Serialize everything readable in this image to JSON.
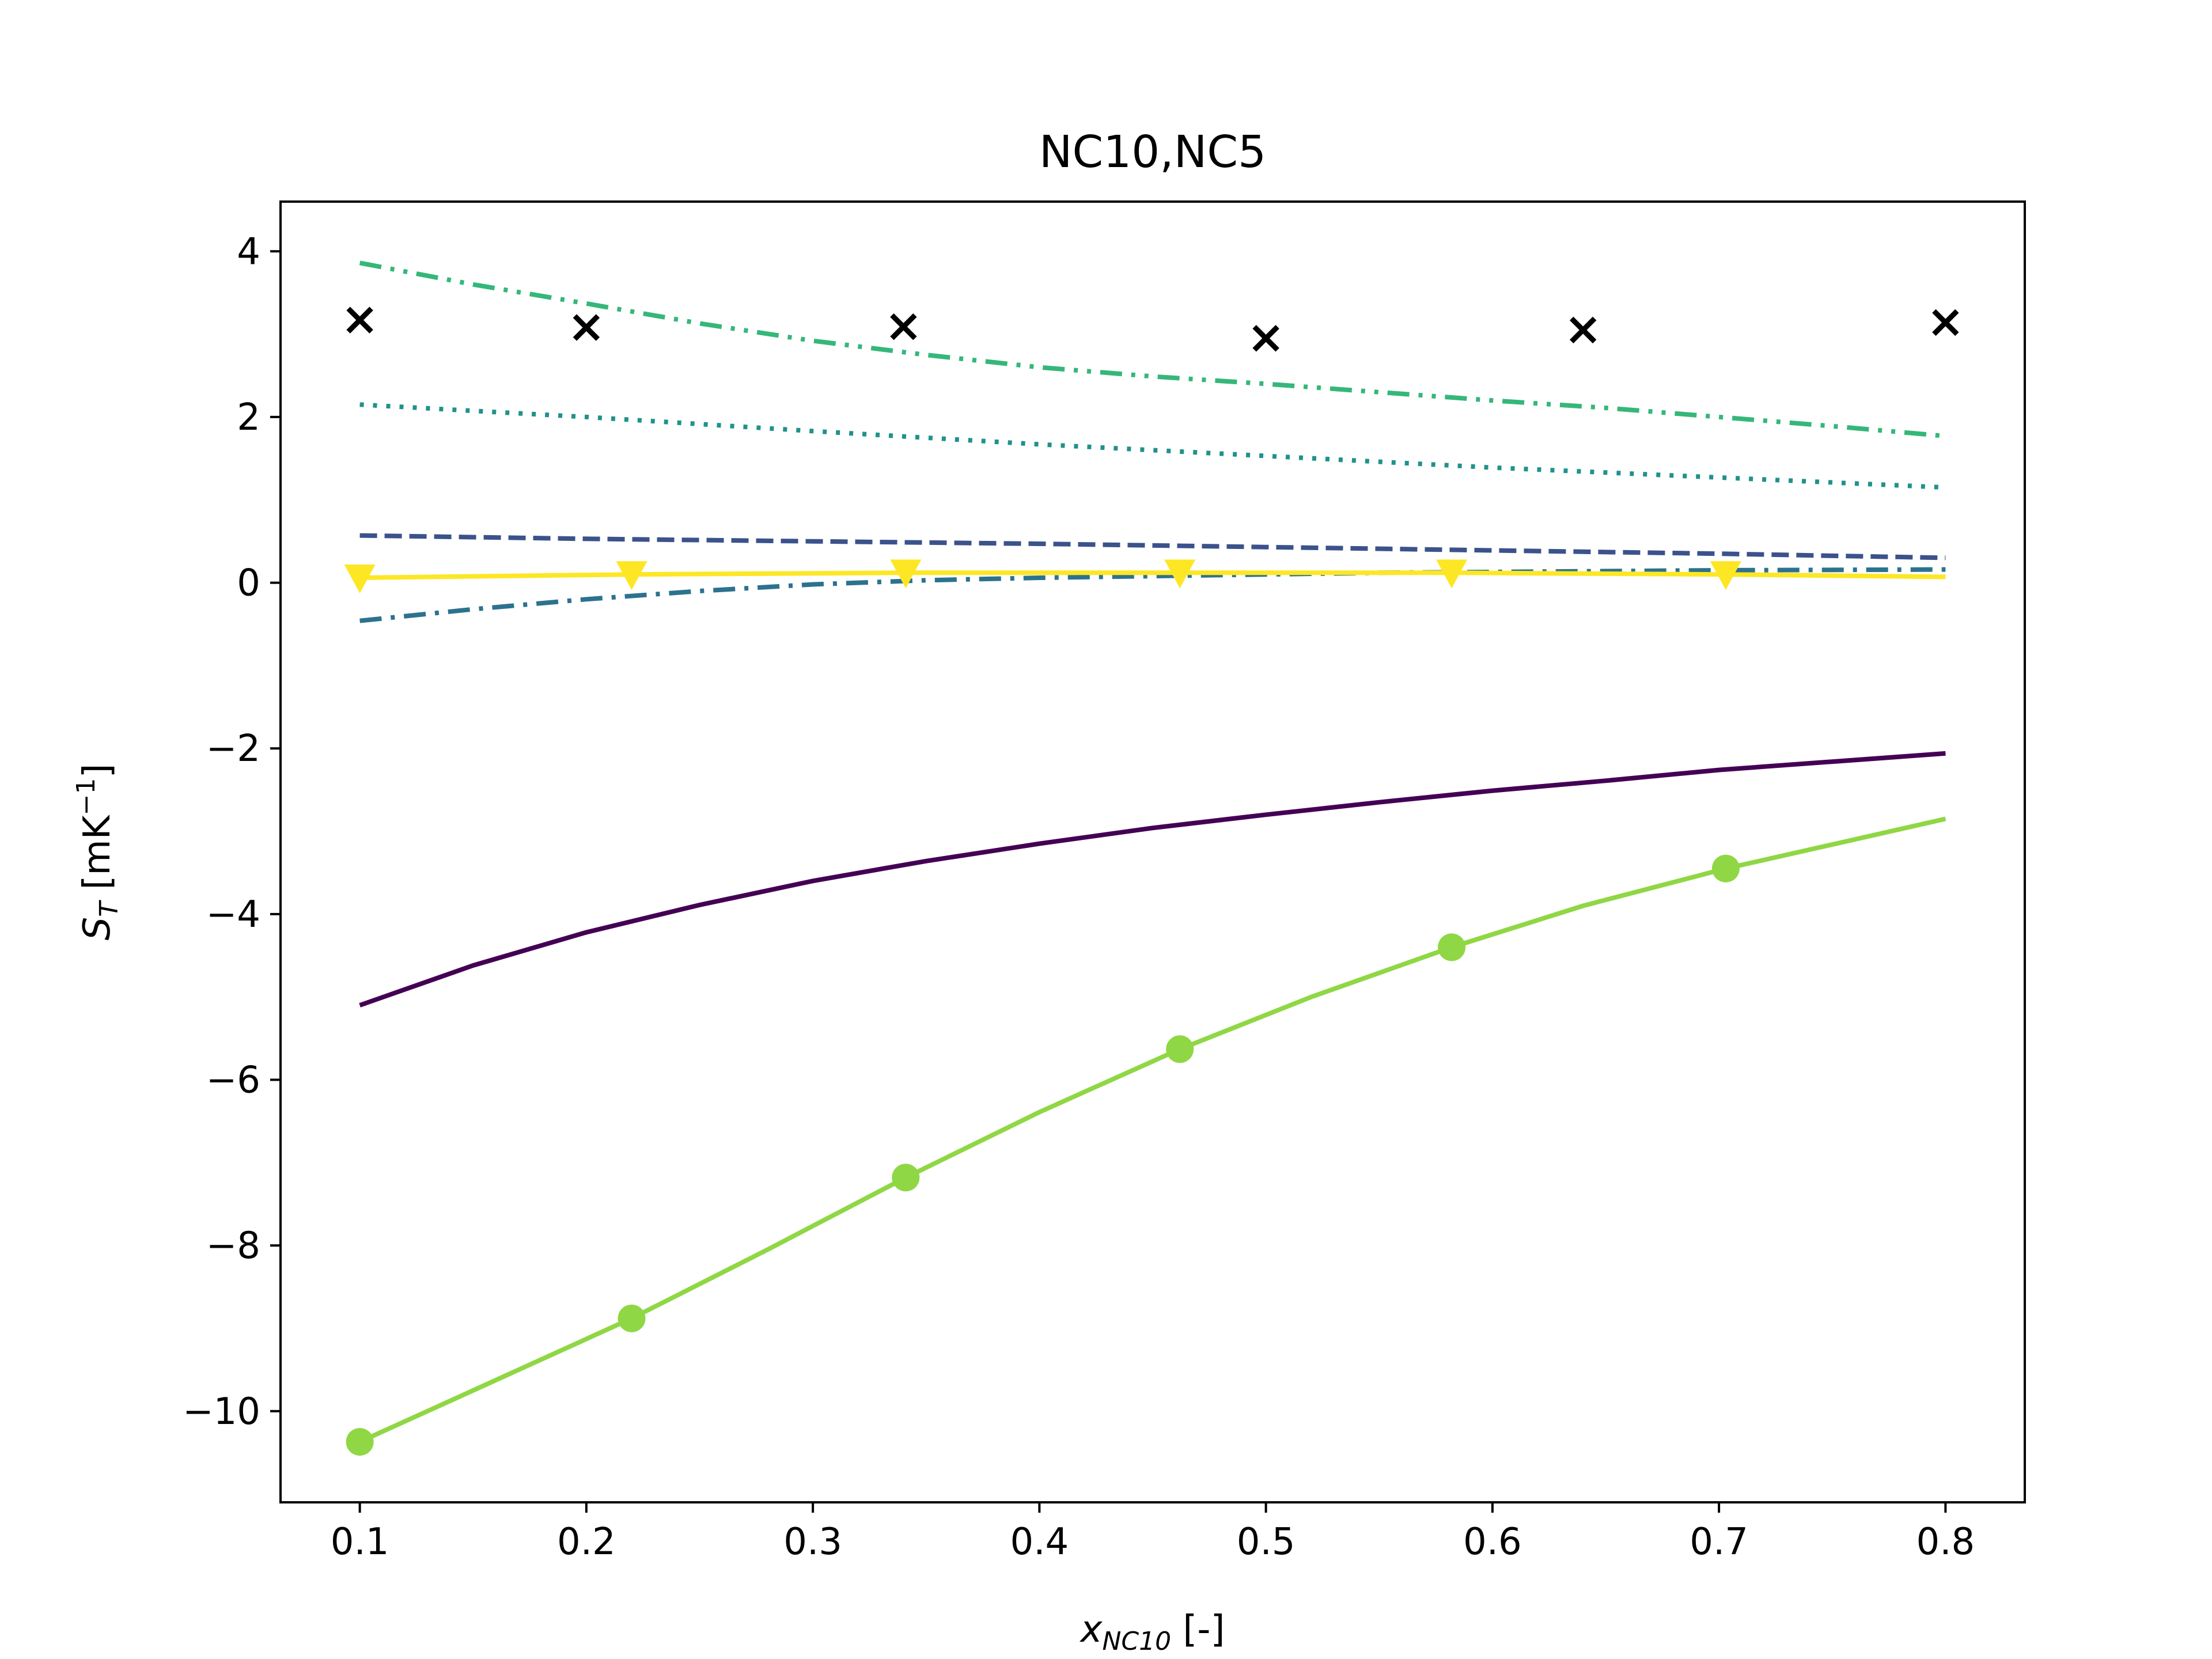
{
  "chart_data": {
    "type": "line",
    "title": "NC10,NC5",
    "xlabel": {
      "main": "x",
      "sub": "NC10",
      "suffix": " [-]"
    },
    "ylabel": {
      "main": "S",
      "sub": "T",
      "unit_prefix": " [mK",
      "unit_sup": "−1",
      "unit_suffix": "]"
    },
    "xlim": [
      0.065,
      0.835
    ],
    "ylim": [
      -11.1,
      4.6
    ],
    "xticks": [
      0.1,
      0.2,
      0.3,
      0.4,
      0.5,
      0.6,
      0.7,
      0.8
    ],
    "xtick_labels": [
      "0.1",
      "0.2",
      "0.3",
      "0.4",
      "0.5",
      "0.6",
      "0.7",
      "0.8"
    ],
    "yticks": [
      4,
      2,
      0,
      -2,
      -4,
      -6,
      -8,
      -10
    ],
    "ytick_labels": [
      "4",
      "2",
      "0",
      "−2",
      "−4",
      "−6",
      "−8",
      "−10"
    ],
    "grid": false,
    "series": [
      {
        "color": "#440154",
        "linestyle": "solid",
        "x": [
          0.1,
          0.15,
          0.2,
          0.25,
          0.3,
          0.35,
          0.4,
          0.45,
          0.5,
          0.55,
          0.6,
          0.65,
          0.7,
          0.75,
          0.8
        ],
        "y": [
          -5.1,
          -4.62,
          -4.22,
          -3.89,
          -3.6,
          -3.36,
          -3.15,
          -2.96,
          -2.8,
          -2.65,
          -2.51,
          -2.39,
          -2.26,
          -2.16,
          -2.06
        ]
      },
      {
        "color": "#3b528b",
        "linestyle": "dashed",
        "x": [
          0.1,
          0.2,
          0.3,
          0.4,
          0.5,
          0.6,
          0.7,
          0.8
        ],
        "y": [
          0.57,
          0.53,
          0.5,
          0.47,
          0.43,
          0.39,
          0.35,
          0.3
        ]
      },
      {
        "color": "#2c728e",
        "linestyle": "dashdot",
        "x": [
          0.1,
          0.15,
          0.2,
          0.25,
          0.3,
          0.35,
          0.4,
          0.45,
          0.5,
          0.55,
          0.6,
          0.7,
          0.8
        ],
        "y": [
          -0.46,
          -0.32,
          -0.2,
          -0.1,
          -0.02,
          0.03,
          0.06,
          0.08,
          0.1,
          0.12,
          0.13,
          0.15,
          0.16
        ]
      },
      {
        "color": "#21918c",
        "linestyle": "dotted",
        "x": [
          0.1,
          0.2,
          0.3,
          0.4,
          0.5,
          0.6,
          0.7,
          0.8
        ],
        "y": [
          2.15,
          2.0,
          1.83,
          1.67,
          1.53,
          1.39,
          1.27,
          1.15
        ]
      },
      {
        "color": "#35b779",
        "linestyle": "dashdotdot",
        "x": [
          0.1,
          0.15,
          0.2,
          0.25,
          0.3,
          0.35,
          0.4,
          0.45,
          0.5,
          0.55,
          0.6,
          0.65,
          0.7,
          0.75,
          0.8
        ],
        "y": [
          3.86,
          3.6,
          3.37,
          3.13,
          2.92,
          2.75,
          2.6,
          2.49,
          2.4,
          2.3,
          2.2,
          2.11,
          2.0,
          1.89,
          1.77
        ]
      },
      {
        "color": "#8fd744",
        "linestyle": "solid",
        "marker": "circle",
        "x": [
          0.1,
          0.15,
          0.22,
          0.28,
          0.341,
          0.4,
          0.462,
          0.52,
          0.582,
          0.64,
          0.703,
          0.75,
          0.8
        ],
        "y": [
          -10.37,
          -9.75,
          -8.88,
          -8.05,
          -7.18,
          -6.39,
          -5.63,
          -5.0,
          -4.4,
          -3.9,
          -3.45,
          -3.16,
          -2.85
        ],
        "markers_x": [
          0.1,
          0.22,
          0.341,
          0.462,
          0.582,
          0.703
        ],
        "markers_y": [
          -10.37,
          -8.88,
          -7.18,
          -5.63,
          -4.4,
          -3.45
        ]
      },
      {
        "color": "#fde725",
        "linestyle": "solid",
        "marker": "triangle-down",
        "x": [
          0.1,
          0.22,
          0.341,
          0.462,
          0.582,
          0.703,
          0.8
        ],
        "y": [
          0.06,
          0.1,
          0.12,
          0.12,
          0.12,
          0.1,
          0.07
        ],
        "markers_x": [
          0.1,
          0.22,
          0.341,
          0.462,
          0.582,
          0.703
        ],
        "markers_y": [
          0.06,
          0.1,
          0.12,
          0.12,
          0.12,
          0.1
        ]
      },
      {
        "color": "#000000",
        "linestyle": "none",
        "marker": "x",
        "x": [
          0.1,
          0.2,
          0.34,
          0.5,
          0.64,
          0.8
        ],
        "y": [
          3.17,
          3.08,
          3.09,
          2.95,
          3.05,
          3.14
        ],
        "markers_x": [
          0.1,
          0.2,
          0.34,
          0.5,
          0.64,
          0.8
        ],
        "markers_y": [
          3.17,
          3.08,
          3.09,
          2.95,
          3.05,
          3.14
        ]
      }
    ]
  }
}
